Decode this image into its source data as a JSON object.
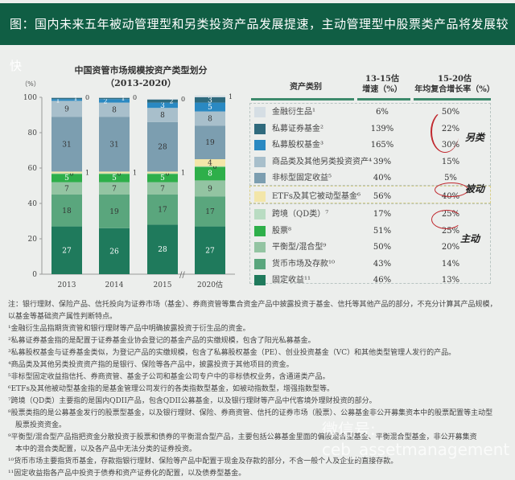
{
  "header": {
    "title": "图：国内未来五年被动管理型和另类投资产品发展提速，主动管理型中股票类产品将发展较快"
  },
  "chart_data": {
    "type": "bar",
    "stacked": true,
    "title": "中国资管市场规模按资产类型划分",
    "subtitle": "（2013-2020）",
    "ylabel": "（%）",
    "ylim": [
      0,
      100
    ],
    "yticks": [
      0,
      20,
      40,
      60,
      80,
      100
    ],
    "categories": [
      "2013",
      "2014",
      "2015",
      "2020估"
    ],
    "series": [
      {
        "name": "固定收益",
        "color": "#1f7a5c",
        "values": [
          27,
          26,
          28,
          27
        ]
      },
      {
        "name": "货币市场及存款",
        "color": "#5aa67d",
        "values": [
          18,
          19,
          17,
          17
        ]
      },
      {
        "name": "平衡型/混合型",
        "color": "#93c4a2",
        "values": [
          7,
          7,
          7,
          9
        ]
      },
      {
        "name": "股票",
        "color": "#2eaf4a",
        "values": [
          5,
          5,
          5,
          8
        ]
      },
      {
        "name": "跨境（QD类）",
        "color": "#b9dcc2",
        "values": [
          0,
          0,
          0,
          0
        ]
      },
      {
        "name": "ETFs及其它被动型基金",
        "color": "#f3e6a9",
        "values": [
          1,
          1,
          1,
          4
        ]
      },
      {
        "name": "非标型固定收益",
        "color": "#7c9eb0",
        "values": [
          31,
          31,
          28,
          19
        ]
      },
      {
        "name": "商品类及其他另类投资资产",
        "color": "#a8bfcb",
        "values": [
          9,
          8,
          8,
          8
        ]
      },
      {
        "name": "私募股权基金",
        "color": "#2a89c2",
        "values": [
          1,
          2,
          3,
          5
        ]
      },
      {
        "name": "私募证券基金",
        "color": "#2f6a7d",
        "values": [
          1,
          1,
          2,
          3
        ]
      },
      {
        "name": "金融衍生品",
        "color": "#d5dee4",
        "values": [
          0,
          0,
          0,
          1
        ]
      }
    ]
  },
  "table": {
    "headers": {
      "category": "资产类别",
      "growth_1315": "13-15估\n增速（%）",
      "cagr_1520": "15-20估\n年均复合增长率（%）"
    },
    "rows": [
      {
        "label": "金融衍生品¹",
        "g1": "6%",
        "g2": "50%",
        "color": "#d5dee4"
      },
      {
        "label": "私募证券基金²",
        "g1": "139%",
        "g2": "22%",
        "color": "#2f6a7d"
      },
      {
        "label": "私募股权基金³",
        "g1": "165%",
        "g2": "30%",
        "color": "#2a89c2"
      },
      {
        "label": "商品类及其他另类投资资产⁴",
        "g1": "39%",
        "g2": "15%",
        "color": "#a8bfcb"
      },
      {
        "label": "非标型固定收益⁵",
        "g1": "40%",
        "g2": "5%",
        "color": "#7c9eb0"
      },
      {
        "label": "ETFs及其它被动型基金⁶",
        "g1": "56%",
        "g2": "40%",
        "color": "#f3e6a9"
      },
      {
        "label": "跨境（QD类）⁷",
        "g1": "17%",
        "g2": "25%",
        "color": "#b9dcc2"
      },
      {
        "label": "股票⁸",
        "g1": "51%",
        "g2": "25%",
        "color": "#2eaf4a"
      },
      {
        "label": "平衡型/混合型⁹",
        "g1": "50%",
        "g2": "20%",
        "color": "#93c4a2"
      },
      {
        "label": "货币市场及存款¹⁰",
        "g1": "43%",
        "g2": "14%",
        "color": "#5aa67d"
      },
      {
        "label": "固定收益¹¹",
        "g1": "46%",
        "g2": "13%",
        "color": "#1f7a5c"
      }
    ],
    "groups": {
      "alternative": "另类",
      "passive": "被动",
      "active": "主动"
    }
  },
  "notes": [
    "注：银行理财、保险产品、信托投向为证券市场（基金）、券商资管等集合资金产品中披露投资于基金、信托等其他产品的部分，不充分计算其产品规模，",
    "以基金等基础资产属性判断特点。",
    "¹金融衍生品指期货资管和银行理财等产品中明确披露投资于衍生品的资金。",
    "²私募证券基金指的是配置于证券基金业协会登记的基金产品的实缴规模，包含了阳光私募基金。",
    "³私募股权基金与证券基金类似，为登记产品的实缴规模，包含了私募股权基金（PE）、创业投资基金（VC）和其他类型管理人发行的产品。",
    "⁴商品类及其他另类投资资产指的是银行、保险等各产品中，披露投资于其他项目的资金。",
    "⁵非标型固定收益指信托、券商资管、基金子公司和基金公司专户中的非标债权业务，含通道类产品。",
    "⁶ETFs及其他被动型基金指的是基金管理公司发行的各类指数型基金，如被动指数型，增强指数型等。",
    "⁷跨境（QD类）主要指的是国内QDII产品，包含QDII公募基金，以及银行理财等产品中代客境外理财投资的部分。",
    "⁸股票类指的是公募基金发行的股票型基金，以及银行理财、保险、券商资管、信托的证券市场（股票）、公募基金非公开募集资本中的股票配置等主动型",
    "　股票投资资金。",
    "⁹平衡型/混合型产品指把资金分散投资于股票和债券的平衡混合型产品，主要包括公募基金里面的偏股混合型基金、平衡混合型基金，非公开募集资",
    "　本中的混合类配置，以及各产品中无法分类的证券投资。",
    "¹⁰货币市场主要指货币基金，存款指银行理财、保险等产品中配置于现金及存款的部分，不含一般个人及企业的直接存款。",
    "¹¹固定收益指各产品中投资于债券和资产证券化的配置，以及债券型基金。"
  ],
  "watermark": "微信号: ceb_assetmanagement"
}
